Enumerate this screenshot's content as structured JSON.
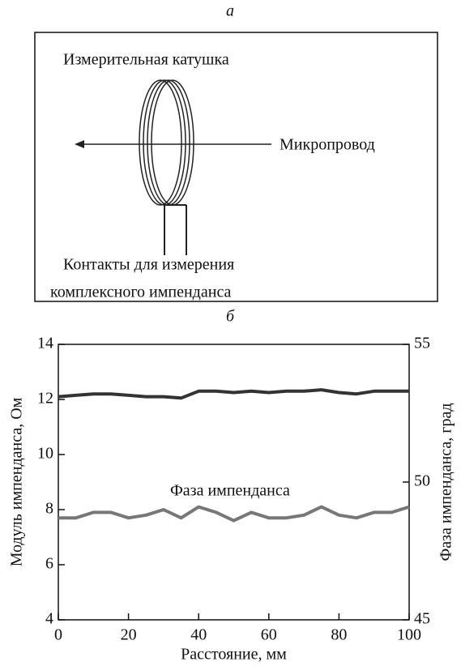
{
  "diagram": {
    "label": "а",
    "coil_label": "Измерительная катушка",
    "wire_label": "Микропровод",
    "contacts_label": [
      "Контакты для измерения",
      "комплексного импенданса"
    ]
  },
  "chart_data": {
    "type": "line",
    "panel_label": "б",
    "x_label": "Расстояние, мм",
    "y_label": "Модуль импенданса, Ом",
    "y2_label": "Фаза импенданса, град",
    "annotation": "Фаза импенданса",
    "x": [
      0,
      5,
      10,
      15,
      20,
      25,
      30,
      35,
      40,
      45,
      50,
      55,
      60,
      65,
      70,
      75,
      80,
      85,
      90,
      95,
      100
    ],
    "series": [
      {
        "color": "#333333",
        "values": [
          12.1,
          12.15,
          12.2,
          12.2,
          12.15,
          12.1,
          12.1,
          12.05,
          12.3,
          12.3,
          12.25,
          12.3,
          12.25,
          12.3,
          12.3,
          12.35,
          12.25,
          12.2,
          12.3,
          12.3,
          12.3
        ]
      },
      {
        "color": "#777777",
        "axis": "y2",
        "values": [
          48.7,
          48.7,
          48.9,
          48.9,
          48.7,
          48.8,
          49.0,
          48.7,
          49.1,
          48.9,
          48.6,
          48.9,
          48.7,
          48.7,
          48.8,
          49.1,
          48.8,
          48.7,
          48.9,
          48.9,
          49.1
        ]
      }
    ],
    "xlim": [
      0,
      100
    ],
    "xticks": [
      0,
      20,
      40,
      60,
      80,
      100
    ],
    "ylim": [
      4,
      14
    ],
    "yticks": [
      4,
      6,
      8,
      10,
      12,
      14
    ],
    "y2lim": [
      45,
      55
    ],
    "y2ticks": [
      45,
      50,
      55
    ]
  }
}
